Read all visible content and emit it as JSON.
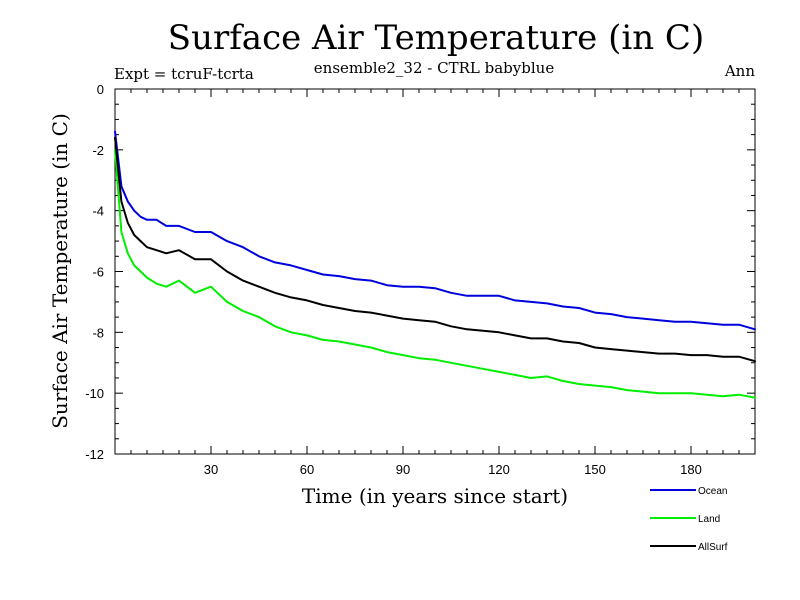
{
  "chart_data": {
    "type": "line",
    "title": "Surface Air Temperature (in C)",
    "subtitle": "ensemble2_32 - CTRL babyblue",
    "left_note": "Expt = tcruF-tcrta",
    "right_note": "Ann",
    "xlabel": "Time (in years since start)",
    "ylabel": "Surface Air Temperature (in C)",
    "xlim": [
      0,
      200
    ],
    "ylim": [
      -12,
      0
    ],
    "x_ticks": [
      30,
      60,
      90,
      120,
      150,
      180
    ],
    "y_ticks": [
      0,
      -2,
      -4,
      -6,
      -8,
      -10,
      -12
    ],
    "grid": false,
    "legend_position": "bottom-right, below plot",
    "x": [
      0,
      2,
      4,
      6,
      8,
      10,
      13,
      16,
      20,
      25,
      30,
      35,
      40,
      45,
      50,
      55,
      60,
      65,
      70,
      75,
      80,
      85,
      90,
      95,
      100,
      105,
      110,
      115,
      120,
      125,
      130,
      135,
      140,
      145,
      150,
      155,
      160,
      165,
      170,
      175,
      180,
      185,
      190,
      195,
      200
    ],
    "series": [
      {
        "name": "Ocean",
        "color": "#0000dd",
        "values": [
          -1.4,
          -3.2,
          -3.7,
          -4.0,
          -4.2,
          -4.3,
          -4.3,
          -4.5,
          -4.5,
          -4.7,
          -4.7,
          -5.0,
          -5.2,
          -5.5,
          -5.7,
          -5.8,
          -5.95,
          -6.1,
          -6.15,
          -6.25,
          -6.3,
          -6.45,
          -6.5,
          -6.5,
          -6.55,
          -6.7,
          -6.8,
          -6.8,
          -6.8,
          -6.95,
          -7.0,
          -7.05,
          -7.15,
          -7.2,
          -7.35,
          -7.4,
          -7.5,
          -7.55,
          -7.6,
          -7.65,
          -7.65,
          -7.7,
          -7.75,
          -7.75,
          -7.9
        ]
      },
      {
        "name": "Land",
        "color": "#00ee00",
        "values": [
          -2.0,
          -4.7,
          -5.4,
          -5.8,
          -6.0,
          -6.2,
          -6.4,
          -6.5,
          -6.3,
          -6.7,
          -6.5,
          -7.0,
          -7.3,
          -7.5,
          -7.8,
          -8.0,
          -8.1,
          -8.25,
          -8.3,
          -8.4,
          -8.5,
          -8.65,
          -8.75,
          -8.85,
          -8.9,
          -9.0,
          -9.1,
          -9.2,
          -9.3,
          -9.4,
          -9.5,
          -9.45,
          -9.6,
          -9.7,
          -9.75,
          -9.8,
          -9.9,
          -9.95,
          -10.0,
          -10.0,
          -10.0,
          -10.05,
          -10.1,
          -10.05,
          -10.15
        ]
      },
      {
        "name": "AllSurf",
        "color": "#000000",
        "values": [
          -1.6,
          -3.7,
          -4.4,
          -4.8,
          -5.0,
          -5.2,
          -5.3,
          -5.4,
          -5.3,
          -5.6,
          -5.6,
          -6.0,
          -6.3,
          -6.5,
          -6.7,
          -6.85,
          -6.95,
          -7.1,
          -7.2,
          -7.3,
          -7.35,
          -7.45,
          -7.55,
          -7.6,
          -7.65,
          -7.8,
          -7.9,
          -7.95,
          -8.0,
          -8.1,
          -8.2,
          -8.2,
          -8.3,
          -8.35,
          -8.5,
          -8.55,
          -8.6,
          -8.65,
          -8.7,
          -8.7,
          -8.75,
          -8.75,
          -8.8,
          -8.8,
          -8.95
        ]
      }
    ]
  }
}
